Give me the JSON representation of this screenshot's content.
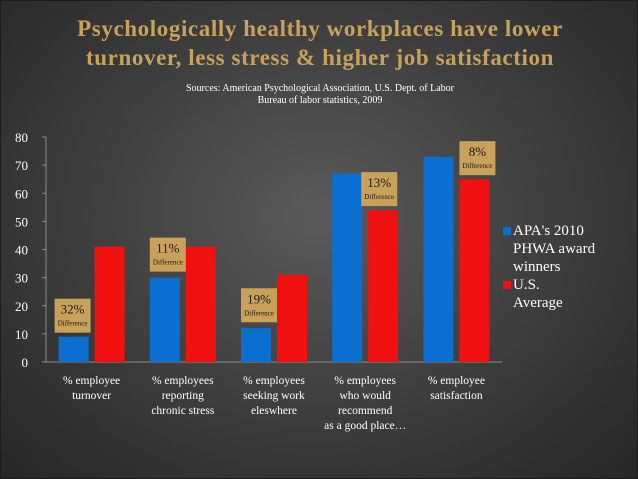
{
  "slide": {
    "title_line1": "Psychologically healthy workplaces have lower",
    "title_line2": "turnover, less stress & higher job satisfaction",
    "sources_line1": "Sources: American Psychological Association, U.S. Dept. of Labor",
    "sources_line2": "Bureau of labor statistics, 2009"
  },
  "chart_data": {
    "type": "bar",
    "categories": [
      [
        "% employee",
        "turnover"
      ],
      [
        "% employees",
        "reporting",
        "chronic stress"
      ],
      [
        "% employees",
        "seeking work",
        "eleswhere"
      ],
      [
        "% employees",
        "who would",
        "recommend",
        "as a good place…"
      ],
      [
        "% employee",
        "satisfaction"
      ]
    ],
    "series": [
      {
        "name": "APA's 2010 PHWA award winners",
        "legend_lines": [
          "APA's 2010",
          "PHWA award",
          "winners"
        ],
        "color": "#0a6fd0",
        "values": [
          9,
          30,
          12,
          67,
          73
        ]
      },
      {
        "name": "U.S. Average",
        "legend_lines": [
          "U.S.",
          "Average"
        ],
        "color": "#f01010",
        "values": [
          41,
          41,
          31,
          54,
          65
        ]
      }
    ],
    "ylim": [
      0,
      80
    ],
    "yticks": [
      0,
      10,
      20,
      30,
      40,
      50,
      60,
      70,
      80
    ],
    "grid": false,
    "legend_position": "right",
    "annotations": [
      {
        "category_index": 0,
        "value": "32%",
        "label": "Difference"
      },
      {
        "category_index": 1,
        "value": "11%",
        "label": "Difference"
      },
      {
        "category_index": 2,
        "value": "19%",
        "label": "Difference"
      },
      {
        "category_index": 3,
        "value": "13%",
        "label": "Difference"
      },
      {
        "category_index": 4,
        "value": "8%",
        "label": "Difference"
      }
    ],
    "annotation_color": "#c8a15a"
  }
}
